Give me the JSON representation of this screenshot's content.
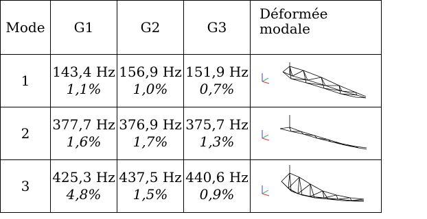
{
  "table": {
    "headers": {
      "mode": "Mode",
      "g1": "G1",
      "g2": "G2",
      "g3": "G3",
      "shape_line1": "Déformée",
      "shape_line2": "modale"
    },
    "rows": [
      {
        "mode": "1",
        "g1_freq": "143,4 Hz",
        "g1_damp": "1,1%",
        "g2_freq": "156,9 Hz",
        "g2_damp": "1,0%",
        "g3_freq": "151,9 Hz",
        "g3_damp": "0,7%"
      },
      {
        "mode": "2",
        "g1_freq": "377,7 Hz",
        "g1_damp": "1,6%",
        "g2_freq": "376,9 Hz",
        "g2_damp": "1,7%",
        "g3_freq": "375,7 Hz",
        "g3_damp": "1,3%"
      },
      {
        "mode": "3",
        "g1_freq": "425,3 Hz",
        "g1_damp": "4,8%",
        "g2_freq": "437,5 Hz",
        "g2_damp": "1,5%",
        "g3_freq": "440,6 Hz",
        "g3_damp": "0,9%"
      }
    ]
  },
  "colors": {
    "axis_x": "#e03030",
    "axis_y": "#30a030",
    "axis_z": "#3040e0",
    "mesh": "#000000",
    "border": "#000000"
  }
}
